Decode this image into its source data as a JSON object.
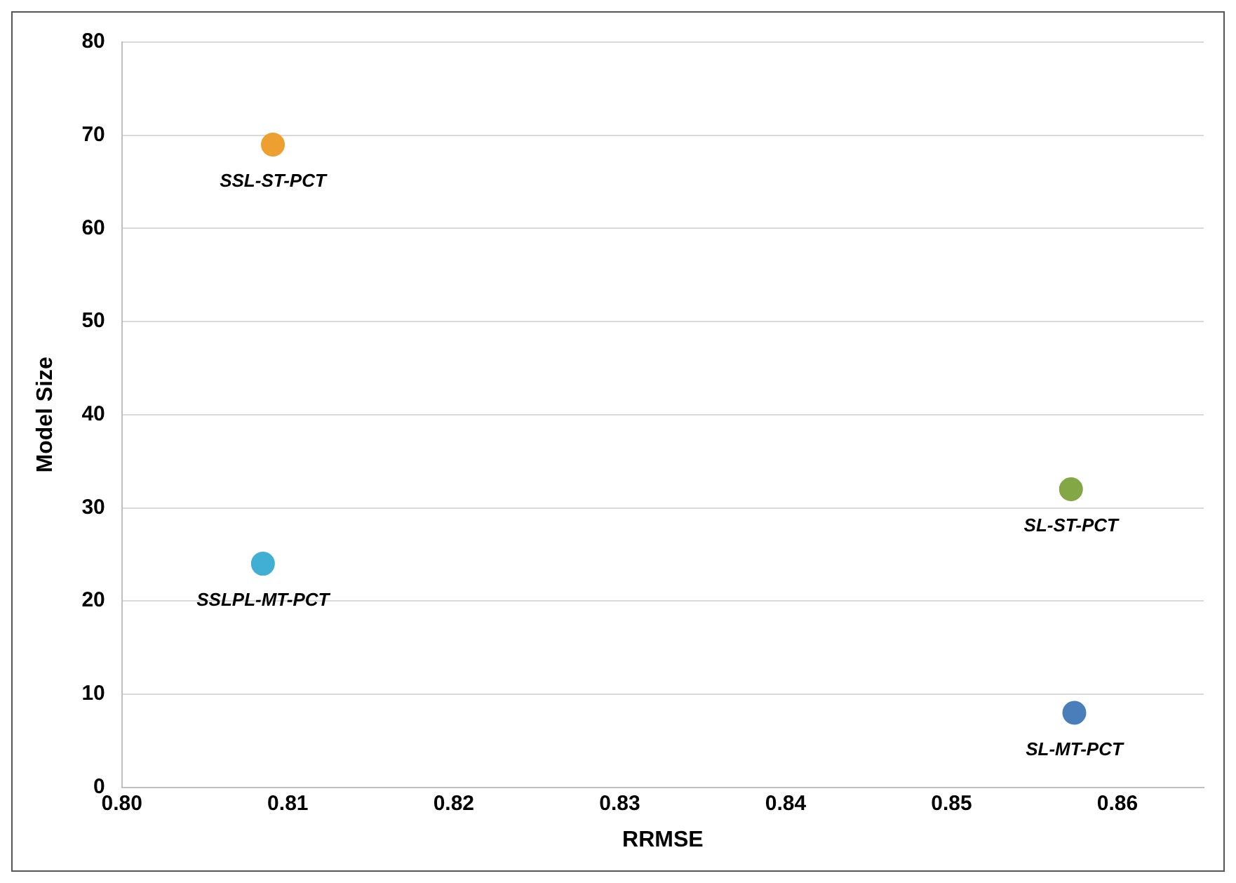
{
  "chart_data": {
    "type": "scatter",
    "xlabel": "RRMSE",
    "ylabel": "Model Size",
    "xlim": [
      0.8,
      0.8652
    ],
    "xticks": [
      {
        "value": 0.8,
        "label": "0.80"
      },
      {
        "value": 0.81,
        "label": "0.81"
      },
      {
        "value": 0.82,
        "label": "0.82"
      },
      {
        "value": 0.83,
        "label": "0.83"
      },
      {
        "value": 0.84,
        "label": "0.84"
      },
      {
        "value": 0.85,
        "label": "0.85"
      },
      {
        "value": 0.86,
        "label": "0.86"
      }
    ],
    "ylim": [
      0,
      80
    ],
    "yticks": [
      0,
      10,
      20,
      30,
      40,
      50,
      60,
      70,
      80
    ],
    "grid": "y",
    "legend": false,
    "marker": "circle",
    "series": [
      {
        "name": "SSL-ST-PCT",
        "color": "#ed9f2f",
        "x": [
          0.8091
        ],
        "values": [
          69
        ]
      },
      {
        "name": "SSLPL-MT-PCT",
        "color": "#41afd4",
        "x": [
          0.8085
        ],
        "values": [
          24
        ]
      },
      {
        "name": "SL-ST-PCT",
        "color": "#82a744",
        "x": [
          0.8572
        ],
        "values": [
          32
        ]
      },
      {
        "name": "SL-MT-PCT",
        "color": "#4a7ebb",
        "x": [
          0.8574
        ],
        "values": [
          8
        ]
      }
    ]
  }
}
